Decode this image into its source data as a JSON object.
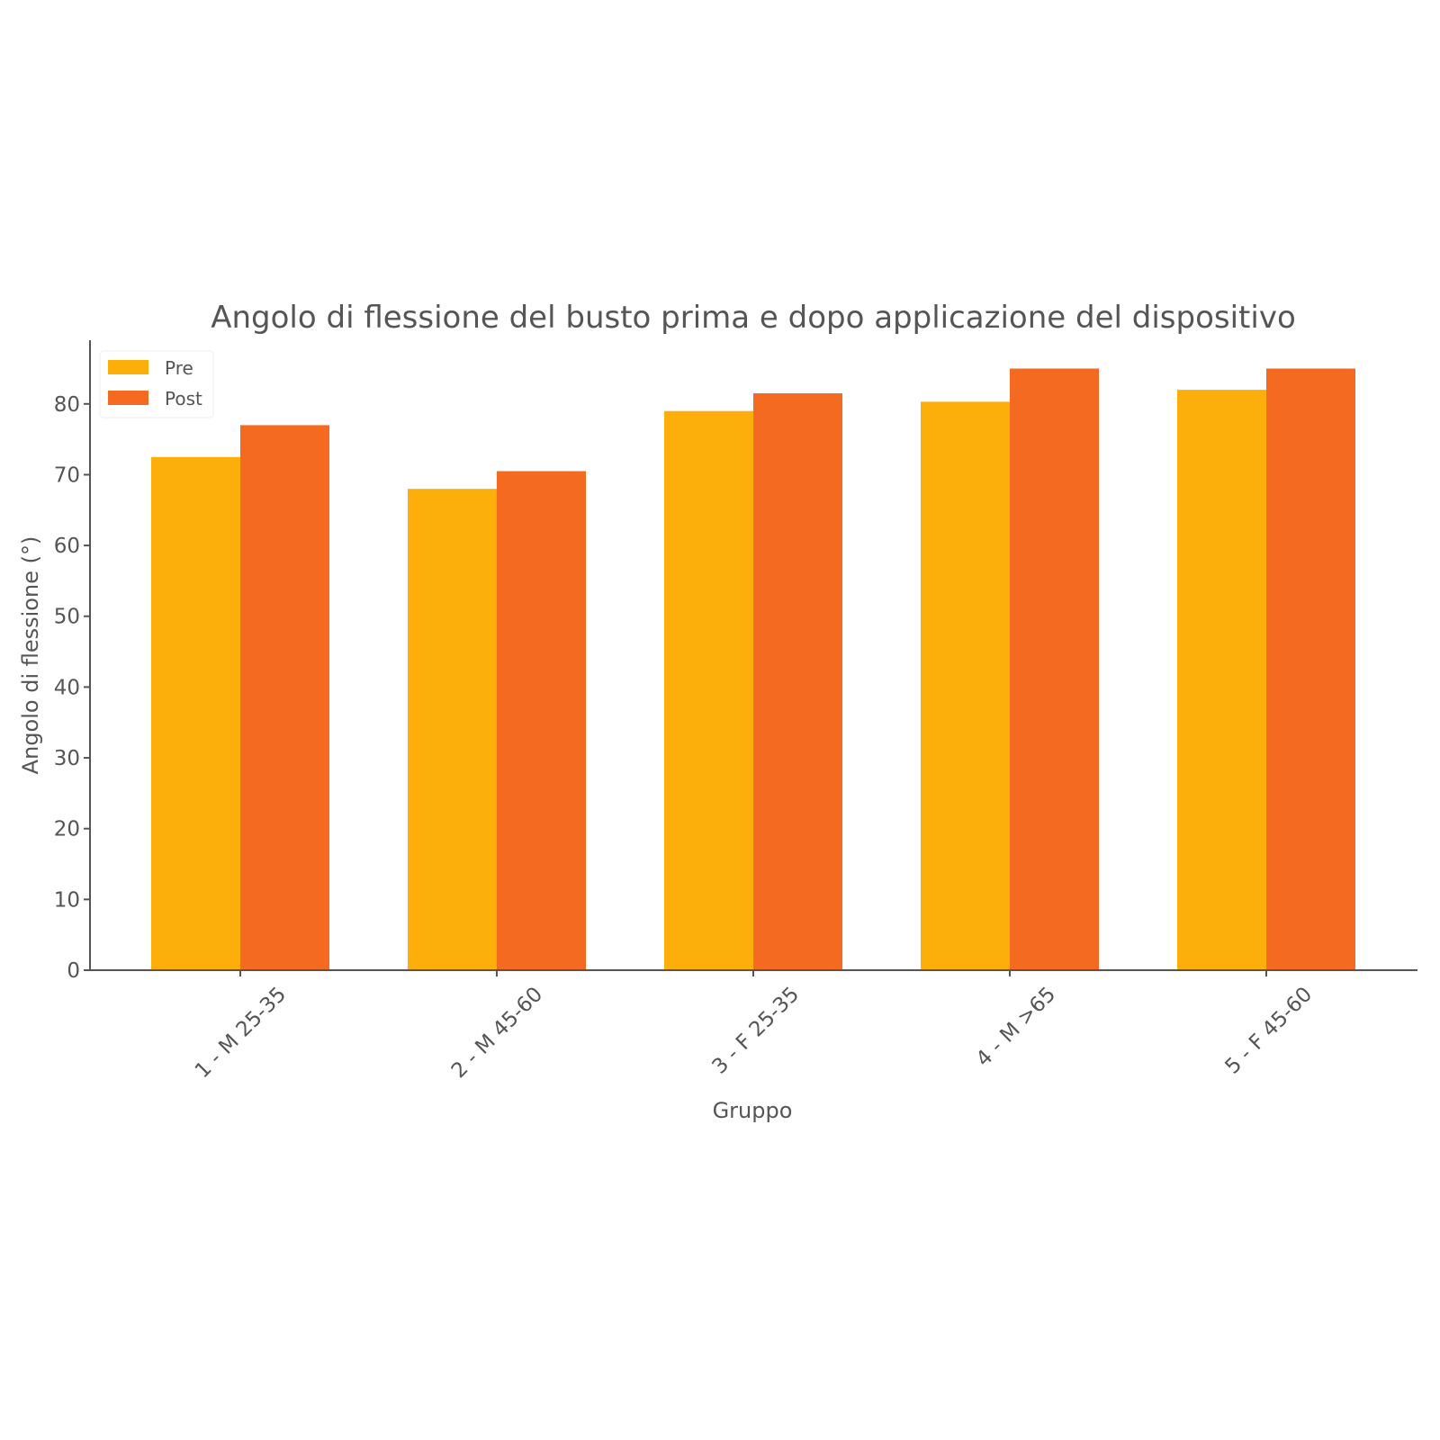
{
  "chart_data": {
    "type": "bar",
    "title": "Angolo di flessione del busto prima e dopo applicazione del dispositivo",
    "xlabel": "Gruppo",
    "ylabel": "Angolo di flessione (°)",
    "categories": [
      "1 - M 25-35",
      "2 - M 45-60",
      "3 - F 25-35",
      "4 - M >65",
      "5 - F 45-60"
    ],
    "series": [
      {
        "name": "Pre",
        "values": [
          72.5,
          68,
          79,
          80.3,
          82
        ],
        "color": "#FCAE0B"
      },
      {
        "name": "Post",
        "values": [
          77,
          70.5,
          81.5,
          85,
          85
        ],
        "color": "#F56A21"
      }
    ],
    "ylim": [
      0,
      89
    ],
    "yticks": [
      0,
      10,
      20,
      30,
      40,
      50,
      60,
      70,
      80
    ],
    "grid": false,
    "legend_position": "top-left"
  }
}
